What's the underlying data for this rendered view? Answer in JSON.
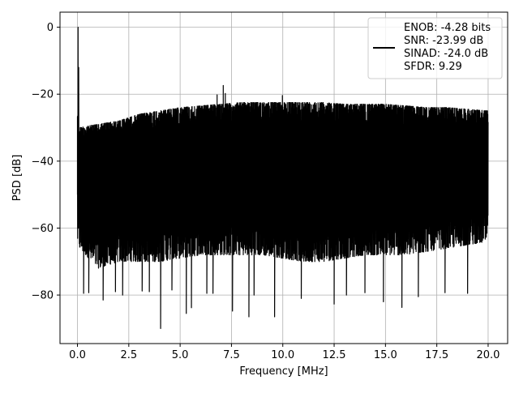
{
  "chart_data": {
    "type": "line",
    "title": "",
    "xlabel": "Frequency [MHz]",
    "ylabel": "PSD [dB]",
    "xlim": [
      -0.85,
      20.95
    ],
    "ylim": [
      -94.5,
      4.5
    ],
    "x_ticks": [
      0.0,
      2.5,
      5.0,
      7.5,
      10.0,
      12.5,
      15.0,
      17.5,
      20.0
    ],
    "x_tick_labels": [
      "0.0",
      "2.5",
      "5.0",
      "7.5",
      "10.0",
      "12.5",
      "15.0",
      "17.5",
      "20.0"
    ],
    "y_ticks": [
      0,
      -20,
      -40,
      -60,
      -80
    ],
    "y_tick_labels": [
      "0",
      "−20",
      "−40",
      "−60",
      "−80"
    ],
    "grid": true,
    "legend_placement": "top-right",
    "legend": [
      "ENOB: -4.28 bits",
      "SNR: -23.99 dB",
      "SINAD: -24.0 dB",
      "SFDR: 9.29"
    ],
    "series": [
      {
        "color": "#000000",
        "x_range": [
          0.0,
          20.0
        ],
        "upper_envelope": [
          [
            0.02,
            -25
          ],
          [
            0.1,
            -30
          ],
          [
            0.5,
            -29.5
          ],
          [
            1.0,
            -29
          ],
          [
            2.0,
            -28
          ],
          [
            3.0,
            -26
          ],
          [
            4.0,
            -25
          ],
          [
            5.0,
            -24
          ],
          [
            6.0,
            -23.5
          ],
          [
            7.0,
            -23
          ],
          [
            8.0,
            -22.5
          ],
          [
            9.0,
            -22.5
          ],
          [
            10.0,
            -22.5
          ],
          [
            11.0,
            -22.5
          ],
          [
            12.0,
            -22.5
          ],
          [
            13.0,
            -23
          ],
          [
            14.0,
            -23
          ],
          [
            15.0,
            -23
          ],
          [
            16.0,
            -23.5
          ],
          [
            17.0,
            -24
          ],
          [
            18.0,
            -24
          ],
          [
            19.0,
            -24.5
          ],
          [
            20.0,
            -25
          ]
        ],
        "lower_envelope": [
          [
            0.02,
            -64
          ],
          [
            0.1,
            -66
          ],
          [
            1.0,
            -72
          ],
          [
            2.0,
            -70
          ],
          [
            3.0,
            -70
          ],
          [
            4.0,
            -70
          ],
          [
            5.0,
            -69
          ],
          [
            6.0,
            -68
          ],
          [
            7.0,
            -68
          ],
          [
            8.0,
            -68
          ],
          [
            9.0,
            -68
          ],
          [
            10.0,
            -69
          ],
          [
            11.0,
            -70
          ],
          [
            12.0,
            -70
          ],
          [
            13.0,
            -69
          ],
          [
            14.0,
            -68
          ],
          [
            15.0,
            -68
          ],
          [
            16.0,
            -68
          ],
          [
            17.0,
            -67
          ],
          [
            18.0,
            -66
          ],
          [
            19.0,
            -65
          ],
          [
            20.0,
            -64
          ]
        ],
        "peaks": [
          [
            0.03,
            0.0
          ],
          [
            0.06,
            -12.0
          ],
          [
            6.8,
            -20.2
          ],
          [
            7.1,
            -17.4
          ],
          [
            7.2,
            -19.8
          ],
          [
            9.98,
            -20.4
          ]
        ],
        "dips": [
          [
            0.3,
            -79.5
          ],
          [
            0.55,
            -79.3
          ],
          [
            1.25,
            -81.5
          ],
          [
            1.85,
            -79.0
          ],
          [
            2.2,
            -80.0
          ],
          [
            3.15,
            -78.8
          ],
          [
            3.5,
            -79.0
          ],
          [
            4.05,
            -90.0
          ],
          [
            4.6,
            -78.5
          ],
          [
            5.3,
            -85.5
          ],
          [
            5.55,
            -83.8
          ],
          [
            6.3,
            -79.5
          ],
          [
            6.6,
            -79.5
          ],
          [
            7.55,
            -84.8
          ],
          [
            8.35,
            -86.5
          ],
          [
            8.6,
            -80.0
          ],
          [
            9.6,
            -86.5
          ],
          [
            10.9,
            -81.0
          ],
          [
            12.5,
            -82.7
          ],
          [
            13.1,
            -80.0
          ],
          [
            14.0,
            -79.3
          ],
          [
            14.9,
            -82.0
          ],
          [
            15.8,
            -83.7
          ],
          [
            16.6,
            -80.5
          ],
          [
            17.9,
            -79.3
          ],
          [
            19.0,
            -79.5
          ]
        ]
      }
    ]
  }
}
